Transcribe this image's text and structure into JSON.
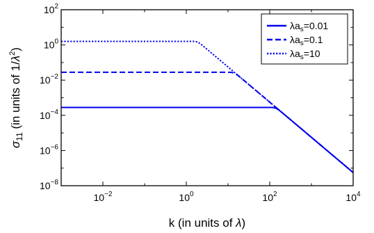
{
  "chart_data": {
    "type": "line",
    "xscale": "log",
    "yscale": "log",
    "xlim": [
      0.001,
      10000
    ],
    "ylim": [
      1e-08,
      100
    ],
    "xlabel": {
      "text": "k (in units of ",
      "sym": "λ",
      "close": ")"
    },
    "ylabel": {
      "sym": "σ",
      "sub": "11",
      "text": " (in units of 1/",
      "lam": "λ",
      "sup": "2",
      "close": ")"
    },
    "x_ticks": [
      {
        "value": 0.01,
        "base": "10",
        "exp": "−2"
      },
      {
        "value": 1,
        "base": "10",
        "exp": "0"
      },
      {
        "value": 100,
        "base": "10",
        "exp": "2"
      },
      {
        "value": 10000,
        "base": "10",
        "exp": "4"
      }
    ],
    "y_ticks": [
      {
        "value": 1e-08,
        "base": "10",
        "exp": "−8"
      },
      {
        "value": 1e-06,
        "base": "10",
        "exp": "−6"
      },
      {
        "value": 0.0001,
        "base": "10",
        "exp": "−4"
      },
      {
        "value": 0.01,
        "base": "10",
        "exp": "−2"
      },
      {
        "value": 1,
        "base": "10",
        "exp": "0"
      },
      {
        "value": 100,
        "base": "10",
        "exp": "2"
      }
    ],
    "legend_position": "top-right",
    "series": [
      {
        "name": "λa_s=0.01",
        "label_main": "λa",
        "label_sub": "s",
        "label_tail": "=0.01",
        "style": "solid",
        "plateau": 0.00028,
        "knee_k": 140
      },
      {
        "name": "λa_s=0.1",
        "label_main": "λa",
        "label_sub": "s",
        "label_tail": "=0.1",
        "style": "dashed",
        "plateau": 0.028,
        "knee_k": 14
      },
      {
        "name": "λa_s=10",
        "label_main": "λa",
        "label_sub": "s",
        "label_tail": "=10",
        "style": "dotted",
        "plateau": 1.6,
        "knee_k": 1.8
      }
    ],
    "asymptote": {
      "description_hidden": false,
      "coefficient": 5.6,
      "power": -2
    },
    "color": "#0000ee"
  }
}
